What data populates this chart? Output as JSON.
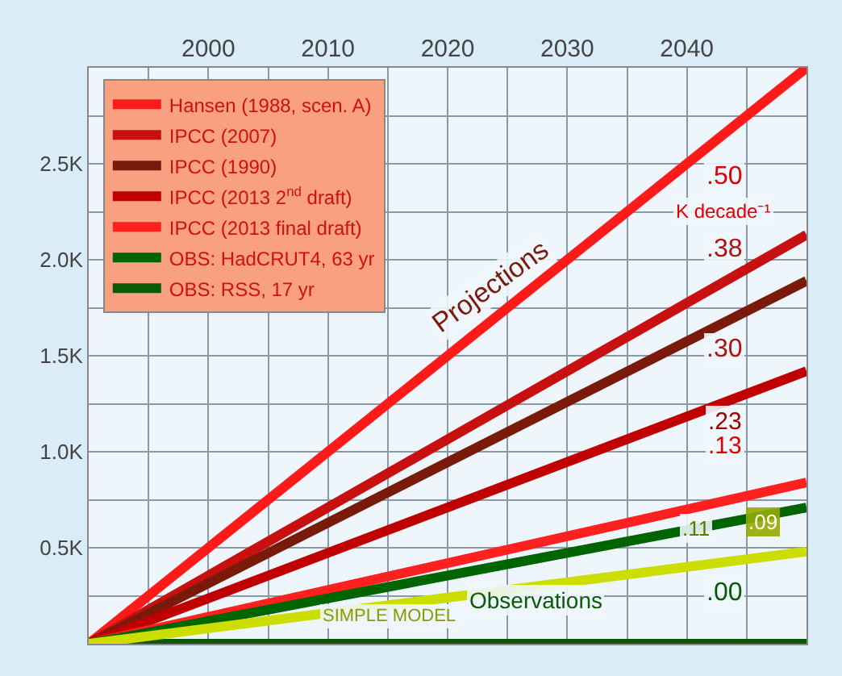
{
  "chart_data": {
    "type": "line",
    "x": [
      1990,
      2050
    ],
    "series": [
      {
        "name": "Hansen (1988, scen. A)",
        "color": "#ff1a1a",
        "values": [
          0,
          3.0
        ]
      },
      {
        "name": "IPCC (2007)",
        "color": "#c81010",
        "values": [
          0,
          2.13
        ]
      },
      {
        "name": "IPCC (1990)",
        "color": "#7a1a0a",
        "values": [
          0,
          1.89
        ]
      },
      {
        "name": "IPCC (2013 2$^{nd}$ draft)",
        "color": "#c00000",
        "values": [
          0,
          1.42
        ]
      },
      {
        "name": "IPCC (2013 final draft)",
        "color": "#ff2020",
        "values": [
          0,
          0.84
        ]
      },
      {
        "name": "OBS: HadCRUT4, 63 yr",
        "color": "#006400",
        "values": [
          0,
          0.71
        ]
      },
      {
        "name": "OBS: RSS, 17 yr",
        "color": "#0a5a0a",
        "values": [
          0,
          0.0
        ]
      },
      {
        "color": "#ccdd00",
        "values": [
          0,
          0.48
        ]
      }
    ],
    "xlim": [
      1990,
      2050
    ],
    "xticks": [
      {
        "value": 1995,
        "label": null
      },
      2000,
      {
        "value": 2005,
        "label": null
      },
      2010,
      {
        "value": 2015,
        "label": null
      },
      2020,
      {
        "value": 2025,
        "label": null
      },
      2030,
      {
        "value": 2035,
        "label": null
      },
      2040,
      {
        "value": 2045,
        "label": null
      }
    ],
    "ylim": [
      0,
      3.0
    ],
    "yticks": [
      {
        "value": 0.25,
        "label": null
      },
      {
        "value": 0.5,
        "label": "0.5K"
      },
      {
        "value": 0.75,
        "label": null
      },
      {
        "value": 1.0,
        "label": "1.0K"
      },
      {
        "value": 1.25,
        "label": null
      },
      {
        "value": 1.5,
        "label": "1.5K"
      },
      {
        "value": 1.75,
        "label": null
      },
      {
        "value": 2.0,
        "label": "2.0K"
      },
      {
        "value": 2.25,
        "label": null
      },
      {
        "value": 2.5,
        "label": "2.5K"
      },
      {
        "value": 2.75,
        "label": null
      }
    ],
    "grid": true,
    "legend": "top left",
    "annotations": [
      ".50",
      "K decade⁻¹",
      ".38",
      ".30",
      ".23",
      ".13",
      ".11",
      ".09",
      ".00",
      "Projections",
      "Observations",
      "SIMPLE MODEL"
    ]
  }
}
